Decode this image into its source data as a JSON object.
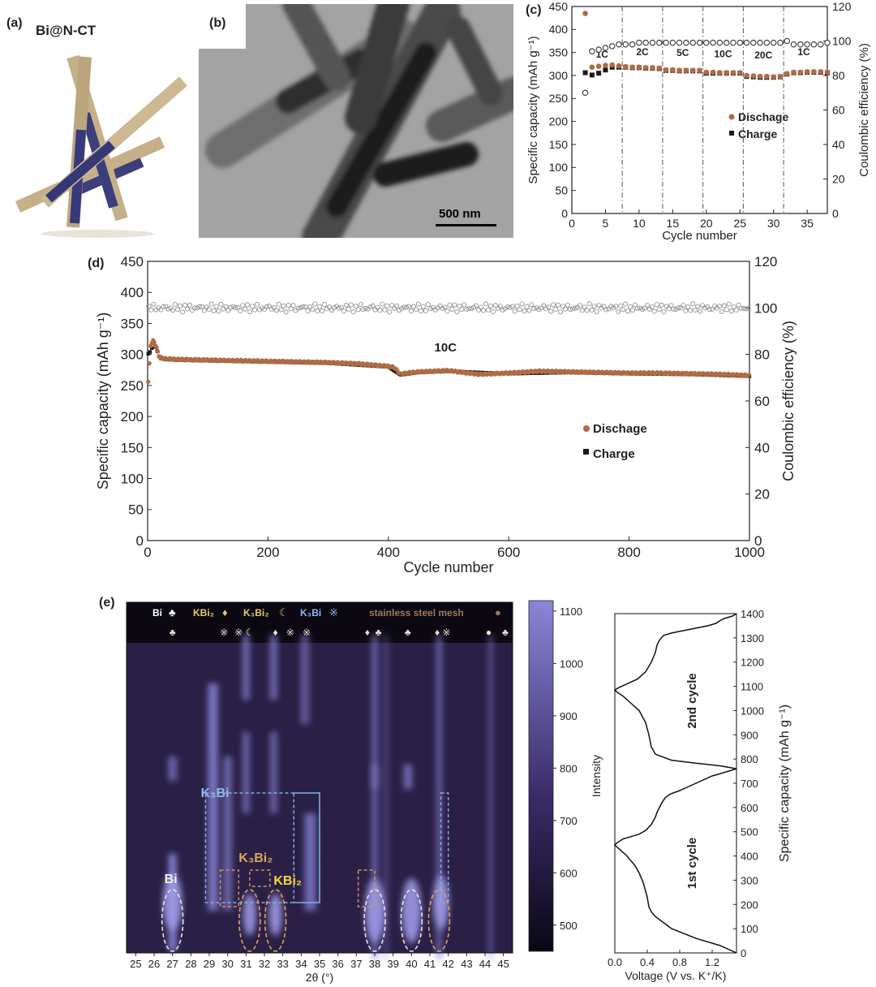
{
  "panels": {
    "a": {
      "label": "(a)",
      "title": "Bi@N-CT"
    },
    "b": {
      "label": "(b)",
      "scalebar": "500 nm"
    },
    "c": {
      "label": "(c)"
    },
    "d": {
      "label": "(d)"
    },
    "e": {
      "label": "(e)"
    }
  },
  "colors": {
    "discharge": "#b06b45",
    "charge": "#1a1a1a",
    "ce": "#333333",
    "cmap_low": "#0b0715",
    "cmap_high": "#8a86d8"
  },
  "chart_data": [
    {
      "id": "c",
      "type": "scatter",
      "xlabel": "Cycle number",
      "ylabel": "Specific capacity (mAh g⁻¹)",
      "y2label": "Coulombic efficiency (%)",
      "xlim": [
        0,
        38
      ],
      "ylim": [
        0,
        450
      ],
      "y2lim": [
        0,
        120
      ],
      "xticks": [
        0,
        5,
        10,
        15,
        20,
        25,
        30,
        35
      ],
      "yticks": [
        0,
        50,
        100,
        150,
        200,
        250,
        300,
        350,
        400,
        450
      ],
      "y2ticks": [
        0,
        20,
        40,
        60,
        80,
        100,
        120
      ],
      "legend": [
        {
          "name": "Dischage",
          "marker": "circle"
        },
        {
          "name": "Charge",
          "marker": "square"
        }
      ],
      "rate_dividers": [
        7.5,
        13.5,
        19.5,
        25.5,
        31.5
      ],
      "rate_labels": [
        {
          "text": "1C",
          "x": 4.5,
          "y": 325
        },
        {
          "text": "2C",
          "x": 10.5,
          "y": 330
        },
        {
          "text": "5C",
          "x": 16.5,
          "y": 328
        },
        {
          "text": "10C",
          "x": 22.5,
          "y": 326
        },
        {
          "text": "20C",
          "x": 28.5,
          "y": 323
        },
        {
          "text": "1C",
          "x": 34.5,
          "y": 330
        }
      ],
      "cycles": [
        2,
        3,
        4,
        5,
        6,
        7,
        8,
        9,
        10,
        11,
        12,
        13,
        14,
        15,
        16,
        17,
        18,
        19,
        20,
        21,
        22,
        23,
        24,
        25,
        26,
        27,
        28,
        29,
        30,
        31,
        32,
        33,
        34,
        35,
        36,
        37,
        38
      ],
      "discharge": [
        435,
        318,
        320,
        322,
        323,
        321,
        319,
        318,
        318,
        317,
        317,
        316,
        312,
        312,
        311,
        311,
        311,
        311,
        307,
        307,
        306,
        306,
        306,
        306,
        300,
        299,
        298,
        298,
        297,
        298,
        304,
        307,
        307,
        308,
        308,
        308,
        307
      ],
      "charge": [
        306,
        301,
        305,
        312,
        318,
        318,
        318,
        317,
        317,
        316,
        316,
        315,
        311,
        311,
        310,
        310,
        310,
        310,
        305,
        305,
        305,
        305,
        305,
        305,
        298,
        297,
        296,
        296,
        296,
        297,
        303,
        306,
        306,
        307,
        307,
        307,
        306
      ],
      "ce": [
        70,
        94,
        95,
        96,
        97,
        98,
        98,
        98,
        99,
        99,
        99,
        99,
        99,
        99,
        99,
        99,
        99,
        99,
        99,
        99,
        99,
        99,
        99,
        99,
        99,
        99,
        99,
        99,
        99,
        99,
        100,
        98,
        98,
        98,
        98,
        98,
        99
      ]
    },
    {
      "id": "d",
      "type": "scatter",
      "xlabel": "Cycle number",
      "ylabel": "Specific capacity (mAh g⁻¹)",
      "y2label": "Coulombic efficiency (%)",
      "xlim": [
        0,
        1000
      ],
      "ylim": [
        0,
        450
      ],
      "y2lim": [
        0,
        120
      ],
      "xticks": [
        0,
        200,
        400,
        600,
        800,
        1000
      ],
      "yticks": [
        0,
        50,
        100,
        150,
        200,
        250,
        300,
        350,
        400,
        450
      ],
      "y2ticks": [
        0,
        20,
        40,
        60,
        80,
        100,
        120
      ],
      "legend": [
        {
          "name": "Dischage",
          "marker": "circle"
        },
        {
          "name": "Charge",
          "marker": "square"
        }
      ],
      "annotation": {
        "text": "10C",
        "x": 495,
        "y": 305
      },
      "discharge": {
        "x": [
          0,
          5,
          10,
          15,
          20,
          30,
          50,
          100,
          150,
          200,
          250,
          300,
          350,
          400,
          410,
          420,
          430,
          450,
          500,
          550,
          600,
          650,
          700,
          750,
          800,
          850,
          900,
          950,
          1000
        ],
        "y": [
          240,
          315,
          323,
          310,
          295,
          293,
          292,
          291,
          290,
          289,
          288,
          287,
          285,
          281,
          279,
          268,
          270,
          272,
          274,
          268,
          270,
          273,
          272,
          271,
          270,
          270,
          269,
          268,
          266
        ]
      },
      "charge": {
        "x": [
          0,
          5,
          10,
          15,
          20,
          30,
          50,
          100,
          200,
          300,
          400,
          420,
          450,
          500,
          600,
          700,
          800,
          900,
          1000
        ],
        "y": [
          300,
          305,
          318,
          308,
          294,
          292,
          291,
          290,
          288,
          286,
          280,
          267,
          271,
          273,
          269,
          271,
          269,
          268,
          265
        ]
      },
      "ce": {
        "mean": 100,
        "range": [
          98,
          102
        ]
      }
    },
    {
      "id": "e",
      "type": "heatmap",
      "xlabel": "2θ (°)",
      "xlim": [
        24.5,
        45.5
      ],
      "xticks": [
        25,
        26,
        27,
        28,
        29,
        30,
        31,
        32,
        33,
        34,
        35,
        36,
        37,
        38,
        39,
        40,
        41,
        42,
        43,
        44,
        45
      ],
      "colorbar": {
        "label": "Intensity",
        "ticks": [
          500,
          600,
          700,
          800,
          900,
          1000,
          1100
        ],
        "range": [
          450,
          1120
        ]
      },
      "phase_legend": [
        {
          "text": "Bi",
          "symbol": "♣"
        },
        {
          "text": "KBi₂",
          "symbol": "♦"
        },
        {
          "text": "K₃Bi₂",
          "symbol": "☾"
        },
        {
          "text": "K₃Bi",
          "symbol": "※"
        },
        {
          "text": "stainless steel mesh",
          "symbol": "●"
        }
      ],
      "annotations": [
        "K₃Bi",
        "K₃Bi₂",
        "KBi₂",
        "Bi"
      ]
    },
    {
      "id": "e-profile",
      "type": "line",
      "xlabel": "Voltage (V vs. K⁺/K)",
      "ylabel": "Specific capacity (mAh g⁻¹)",
      "xlim": [
        0,
        1.5
      ],
      "ylim": [
        0,
        1400
      ],
      "xticks": [
        0.0,
        0.4,
        0.8,
        1.2
      ],
      "yticks": [
        0,
        100,
        200,
        300,
        400,
        500,
        600,
        700,
        800,
        900,
        1000,
        1100,
        1200,
        1300,
        1400
      ],
      "annotations": [
        {
          "text": "2nd cycle",
          "x": 0.95,
          "y": 1040
        },
        {
          "text": "1st cycle",
          "x": 0.95,
          "y": 370
        }
      ],
      "curve": {
        "v": [
          1.5,
          1.3,
          1.0,
          0.7,
          0.5,
          0.45,
          0.42,
          0.4,
          0.35,
          0.3,
          0.25,
          0.15,
          0.05,
          0.0,
          0.03,
          0.1,
          0.2,
          0.3,
          0.38,
          0.45,
          0.5,
          0.52,
          0.55,
          0.58,
          0.62,
          0.68,
          0.8,
          0.9,
          1.0,
          1.1,
          1.2,
          1.3,
          1.4,
          1.5,
          1.3,
          1.0,
          0.7,
          0.5,
          0.45,
          0.42,
          0.38,
          0.3,
          0.2,
          0.1,
          0.03,
          0.0,
          0.05,
          0.15,
          0.28,
          0.38,
          0.45,
          0.5,
          0.52,
          0.55,
          0.6,
          0.7,
          0.85,
          1.0,
          1.15,
          1.25,
          1.3,
          1.35,
          1.45,
          1.5
        ],
        "cap": [
          0,
          30,
          60,
          100,
          150,
          170,
          190,
          230,
          290,
          330,
          360,
          400,
          430,
          445,
          455,
          470,
          480,
          490,
          505,
          530,
          560,
          580,
          600,
          620,
          640,
          655,
          670,
          685,
          700,
          715,
          730,
          740,
          750,
          760,
          772,
          783,
          795,
          820,
          850,
          900,
          950,
          1000,
          1030,
          1060,
          1075,
          1085,
          1095,
          1110,
          1130,
          1160,
          1200,
          1240,
          1270,
          1290,
          1310,
          1320,
          1330,
          1340,
          1350,
          1360,
          1372,
          1380,
          1390,
          1400
        ]
      }
    }
  ]
}
